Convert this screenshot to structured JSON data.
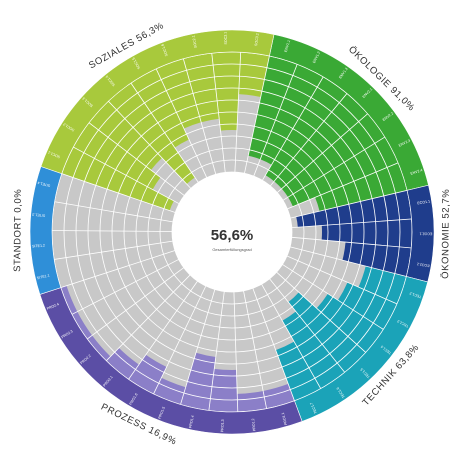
{
  "chart_data": {
    "type": "radial-segmented",
    "levels": 10,
    "center": {
      "value": "56,6%",
      "label": "Gesamterfüllungsgrad"
    },
    "colors": {
      "unfilled": "#c8c8c8",
      "ring_line": "#ffffff",
      "center_bg": "#ffffff"
    },
    "categories": [
      {
        "name": "ÖKOLOGIE",
        "value": "91,0%",
        "color": "#3aa935",
        "band_color": "#3aa935",
        "criteria": [
          {
            "code": "ENV1.1",
            "level": 8.5
          },
          {
            "code": "ENV1.2",
            "level": 8.5
          },
          {
            "code": "ENV1.3",
            "level": 9.5
          },
          {
            "code": "ENV2.1",
            "level": 9.5
          },
          {
            "code": "ENV2.2",
            "level": 9.5
          },
          {
            "code": "ENV2.3",
            "level": 9.5
          },
          {
            "code": "ENV2.4",
            "level": 7.5
          }
        ]
      },
      {
        "name": "ÖKONOMIE",
        "value": "52,7%",
        "color": "#1f3d8c",
        "band_color": "#1f3d8c",
        "criteria": [
          {
            "code": "ECO1.1",
            "level": 9.5
          },
          {
            "code": "ECO2.1",
            "level": 7.5
          },
          {
            "code": "ECO2.2",
            "level": 5.5
          }
        ]
      },
      {
        "name": "TECHNIK",
        "value": "63,8%",
        "color": "#1ba3b8",
        "band_color": "#1ba3b8",
        "criteria": [
          {
            "code": "TEC1.2",
            "level": 3.5
          },
          {
            "code": "TEC1.3",
            "level": 4.5
          },
          {
            "code": "TEC1.4",
            "level": 5.5
          },
          {
            "code": "TEC1.5",
            "level": 7.5
          },
          {
            "code": "TEC1.6",
            "level": 6.5
          },
          {
            "code": "TEC1.7",
            "level": 4.5
          }
        ]
      },
      {
        "name": "PROZESS",
        "value": "16,9%",
        "color": "#8b7fc8",
        "band_color": "#5b4ea5",
        "criteria": [
          {
            "code": "PRO1.1",
            "level": 1.5
          },
          {
            "code": "PRO1.2",
            "level": 1.5
          },
          {
            "code": "PRO1.3",
            "level": 3.5
          },
          {
            "code": "PRO1.4",
            "level": 4.5
          },
          {
            "code": "PRO1.5",
            "level": 1.5
          },
          {
            "code": "PRO1.6",
            "level": 2.5
          },
          {
            "code": "PRO2.1",
            "level": 1.5
          },
          {
            "code": "PRO2.2",
            "level": 0.5
          },
          {
            "code": "PRO2.3",
            "level": 0.5
          },
          {
            "code": "PRO2.4",
            "level": 0.5
          }
        ]
      },
      {
        "name": "STANDORT",
        "value": "0,0%",
        "color": "#2f8fd8",
        "band_color": "#2f8fd8",
        "criteria": [
          {
            "code": "SITE1.1",
            "level": 0
          },
          {
            "code": "SITE1.2",
            "level": 0
          },
          {
            "code": "SITE1.3",
            "level": 0
          },
          {
            "code": "SITE1.4",
            "level": 0
          }
        ]
      },
      {
        "name": "SOZIALES",
        "value": "56,3%",
        "color": "#a8c93c",
        "band_color": "#a8c93c",
        "criteria": [
          {
            "code": "SOC1.1",
            "level": 9.5
          },
          {
            "code": "SOC1.2",
            "level": 7.5
          },
          {
            "code": "SOC1.3",
            "level": 6.5
          },
          {
            "code": "SOC1.4",
            "level": 9.5
          },
          {
            "code": "SOC1.5",
            "level": 6.5
          },
          {
            "code": "SOC1.6",
            "level": 5.5
          },
          {
            "code": "SOC2.1",
            "level": 5.5
          },
          {
            "code": "SOC3.1",
            "level": 6.5
          },
          {
            "code": "SOC3.2",
            "level": 3.5
          }
        ]
      }
    ]
  }
}
